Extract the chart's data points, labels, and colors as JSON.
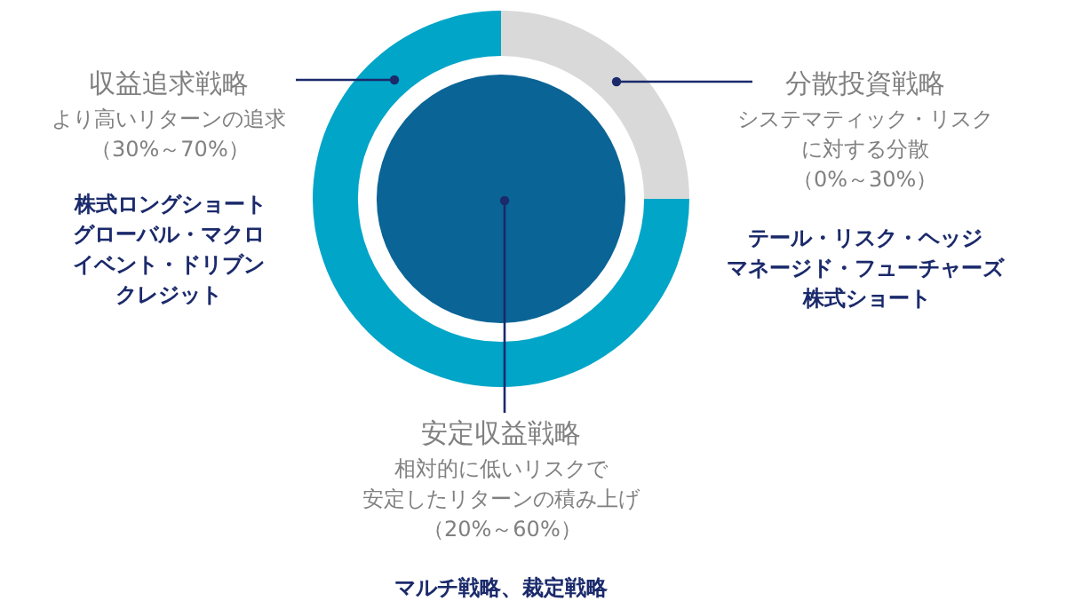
{
  "chart_data": [
    {
      "type": "donut",
      "categories": [
        "分散投資戦略",
        "収益追求戦略"
      ],
      "values": [
        25,
        75
      ],
      "colors": [
        "#d9d9d9",
        "#00a5c8"
      ],
      "legend": false,
      "annotations": [
        "システマティック・リスク",
        "に対する分散",
        "（0%～30%）",
        "テール・リスク・ヘッジ",
        "マネージド・フューチャーズ",
        "株式ショート",
        "より高いリターンの追求",
        "（30%～70%）",
        "株式ロングショート",
        "グローバル・マクロ",
        "イベント・ドリブン",
        "クレジット"
      ]
    },
    {
      "type": "pie",
      "categories": [
        "安定収益戦略"
      ],
      "values": [
        100
      ],
      "colors": [
        "#0a6496"
      ],
      "legend": false,
      "annotations": [
        "相対的に低いリスクで",
        "安定したリターンの積み上げ",
        "（20%～60%）",
        "マルチ戦略、裁定戦略"
      ]
    }
  ]
}
